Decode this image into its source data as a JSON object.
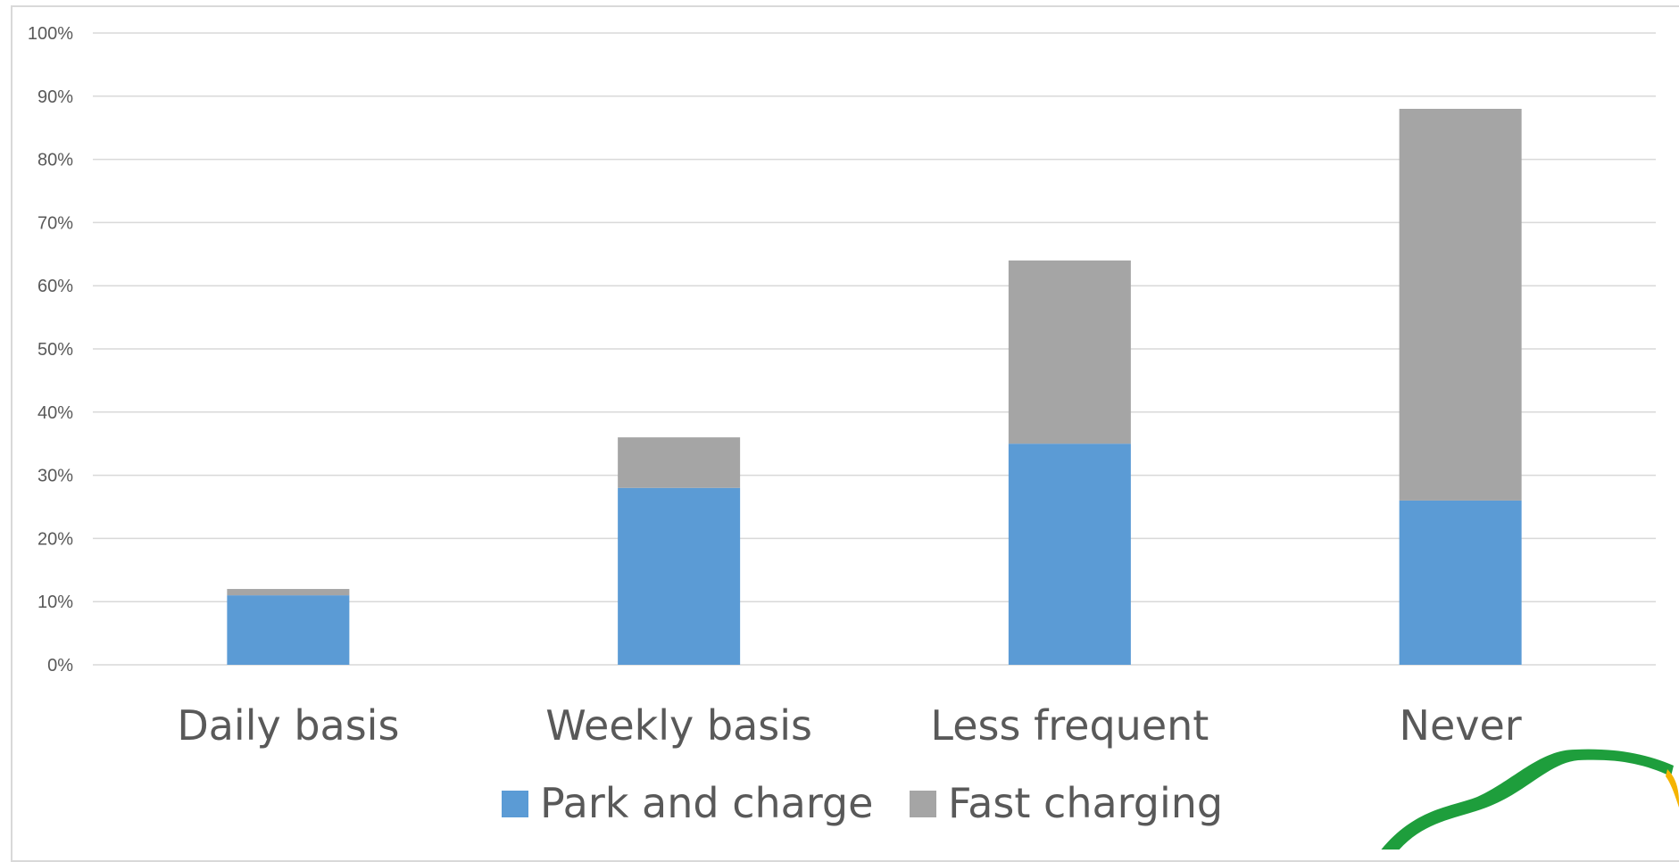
{
  "chart_data": {
    "type": "bar",
    "stacked": true,
    "categories": [
      "Daily basis",
      "Weekly basis",
      "Less frequent",
      "Never"
    ],
    "series": [
      {
        "name": "Park and charge",
        "values": [
          11,
          28,
          35,
          26
        ],
        "color": "#5b9bd5"
      },
      {
        "name": "Fast charging",
        "values": [
          1,
          8,
          29,
          62
        ],
        "color": "#a5a5a5"
      }
    ],
    "yticks": [
      "0%",
      "10%",
      "20%",
      "30%",
      "40%",
      "50%",
      "60%",
      "70%",
      "80%",
      "90%",
      "100%"
    ],
    "ylim": [
      0,
      100
    ],
    "grid": true,
    "legend_position": "bottom"
  },
  "logo": {
    "stroke_color": "#1e9e3c",
    "accent_color": "#f5b400",
    "name": "leaf-logo"
  }
}
